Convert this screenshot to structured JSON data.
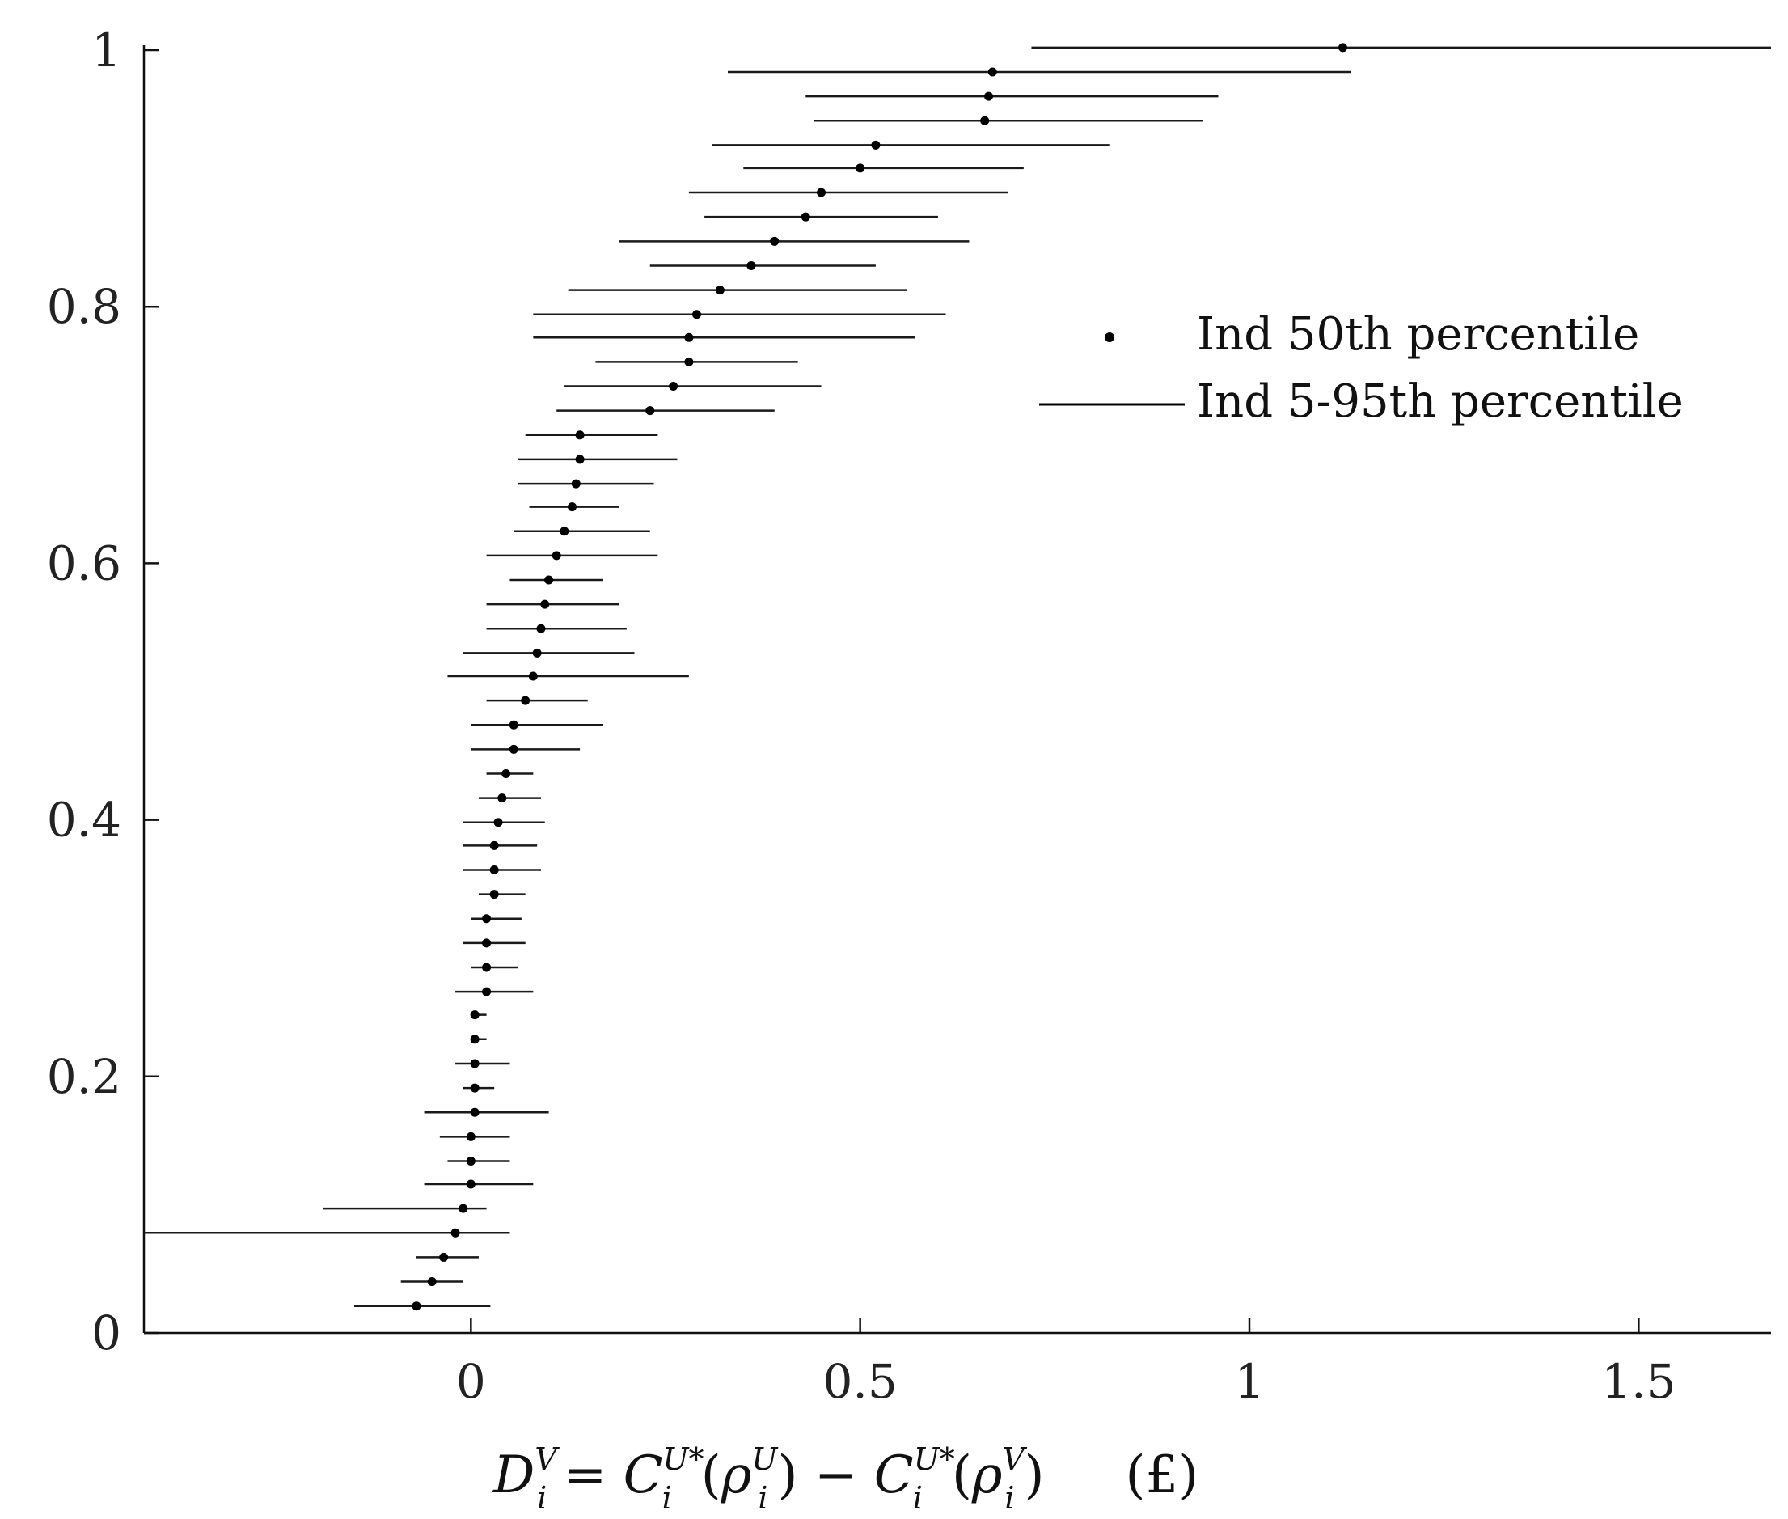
{
  "chart_data": {
    "type": "scatter",
    "xlabel": "D_i^V = C_i^{U*}(ρ_i^U) − C_i^{U*}(ρ_i^V)     (£)",
    "xlabel_parts": {
      "lhs_base": "D",
      "lhs_sub": "i",
      "lhs_sup": "V",
      "eq": " = ",
      "c1_base": "C",
      "c1_sub": "i",
      "c1_sup": "U*",
      "open1": "(",
      "rho1_base": "ρ",
      "rho1_sub": "i",
      "rho1_sup": "U",
      "close1": ")",
      "minus": " − ",
      "c2_base": "C",
      "c2_sub": "i",
      "c2_sup": "U*",
      "open2": "(",
      "rho2_base": "ρ",
      "rho2_sub": "i",
      "rho2_sup": "V",
      "close2": ")",
      "unit": "(£)"
    },
    "ylabel": "",
    "xlim": [
      -0.42,
      1.67
    ],
    "ylim": [
      0,
      1
    ],
    "x_ticks": [
      0,
      0.5,
      1,
      1.5
    ],
    "x_tick_labels": [
      "0",
      "0.5",
      "1",
      "1.5"
    ],
    "y_ticks": [
      0,
      0.2,
      0.4,
      0.6,
      0.8,
      1
    ],
    "y_tick_labels": [
      "0",
      "0.2",
      "0.4",
      "0.6",
      "0.8",
      "1"
    ],
    "grid": false,
    "legend": {
      "placement": "top-right",
      "entries": [
        {
          "label": "Ind 50th percentile",
          "marker": "dot"
        },
        {
          "label": "Ind 5-95th percentile",
          "marker": "line"
        }
      ]
    },
    "series": [
      {
        "name": "Ind 50th percentile",
        "color": "#000000",
        "points": [
          {
            "y": 0.021,
            "x": -0.07,
            "lo": -0.15,
            "hi": 0.025
          },
          {
            "y": 0.04,
            "x": -0.05,
            "lo": -0.09,
            "hi": -0.01
          },
          {
            "y": 0.059,
            "x": -0.035,
            "lo": -0.07,
            "hi": 0.01
          },
          {
            "y": 0.078,
            "x": -0.02,
            "lo": -0.42,
            "hi": 0.05
          },
          {
            "y": 0.097,
            "x": -0.01,
            "lo": -0.19,
            "hi": 0.02
          },
          {
            "y": 0.116,
            "x": 0.0,
            "lo": -0.06,
            "hi": 0.08
          },
          {
            "y": 0.134,
            "x": 0.0,
            "lo": -0.03,
            "hi": 0.05
          },
          {
            "y": 0.153,
            "x": 0.0,
            "lo": -0.04,
            "hi": 0.05
          },
          {
            "y": 0.172,
            "x": 0.005,
            "lo": -0.06,
            "hi": 0.1
          },
          {
            "y": 0.191,
            "x": 0.005,
            "lo": -0.01,
            "hi": 0.03
          },
          {
            "y": 0.21,
            "x": 0.005,
            "lo": -0.02,
            "hi": 0.05
          },
          {
            "y": 0.229,
            "x": 0.005,
            "lo": 0.0,
            "hi": 0.02
          },
          {
            "y": 0.248,
            "x": 0.005,
            "lo": 0.0,
            "hi": 0.02
          },
          {
            "y": 0.266,
            "x": 0.02,
            "lo": -0.02,
            "hi": 0.08
          },
          {
            "y": 0.285,
            "x": 0.02,
            "lo": 0.0,
            "hi": 0.06
          },
          {
            "y": 0.304,
            "x": 0.02,
            "lo": -0.01,
            "hi": 0.07
          },
          {
            "y": 0.323,
            "x": 0.02,
            "lo": 0.0,
            "hi": 0.065
          },
          {
            "y": 0.342,
            "x": 0.03,
            "lo": 0.01,
            "hi": 0.07
          },
          {
            "y": 0.361,
            "x": 0.03,
            "lo": -0.01,
            "hi": 0.09
          },
          {
            "y": 0.38,
            "x": 0.03,
            "lo": -0.01,
            "hi": 0.085
          },
          {
            "y": 0.398,
            "x": 0.035,
            "lo": -0.01,
            "hi": 0.095
          },
          {
            "y": 0.417,
            "x": 0.04,
            "lo": 0.01,
            "hi": 0.09
          },
          {
            "y": 0.436,
            "x": 0.045,
            "lo": 0.02,
            "hi": 0.08
          },
          {
            "y": 0.455,
            "x": 0.055,
            "lo": 0.0,
            "hi": 0.14
          },
          {
            "y": 0.474,
            "x": 0.055,
            "lo": 0.0,
            "hi": 0.17
          },
          {
            "y": 0.493,
            "x": 0.07,
            "lo": 0.02,
            "hi": 0.15
          },
          {
            "y": 0.512,
            "x": 0.08,
            "lo": -0.03,
            "hi": 0.28
          },
          {
            "y": 0.53,
            "x": 0.085,
            "lo": -0.01,
            "hi": 0.21
          },
          {
            "y": 0.549,
            "x": 0.09,
            "lo": 0.02,
            "hi": 0.2
          },
          {
            "y": 0.568,
            "x": 0.095,
            "lo": 0.02,
            "hi": 0.19
          },
          {
            "y": 0.587,
            "x": 0.1,
            "lo": 0.05,
            "hi": 0.17
          },
          {
            "y": 0.606,
            "x": 0.11,
            "lo": 0.02,
            "hi": 0.24
          },
          {
            "y": 0.625,
            "x": 0.12,
            "lo": 0.055,
            "hi": 0.23
          },
          {
            "y": 0.644,
            "x": 0.13,
            "lo": 0.075,
            "hi": 0.19
          },
          {
            "y": 0.662,
            "x": 0.135,
            "lo": 0.06,
            "hi": 0.235
          },
          {
            "y": 0.681,
            "x": 0.14,
            "lo": 0.06,
            "hi": 0.265
          },
          {
            "y": 0.7,
            "x": 0.14,
            "lo": 0.07,
            "hi": 0.24
          },
          {
            "y": 0.719,
            "x": 0.23,
            "lo": 0.11,
            "hi": 0.39
          },
          {
            "y": 0.738,
            "x": 0.26,
            "lo": 0.12,
            "hi": 0.45
          },
          {
            "y": 0.757,
            "x": 0.28,
            "lo": 0.16,
            "hi": 0.42
          },
          {
            "y": 0.776,
            "x": 0.28,
            "lo": 0.08,
            "hi": 0.57
          },
          {
            "y": 0.794,
            "x": 0.29,
            "lo": 0.08,
            "hi": 0.61
          },
          {
            "y": 0.813,
            "x": 0.32,
            "lo": 0.125,
            "hi": 0.56
          },
          {
            "y": 0.832,
            "x": 0.36,
            "lo": 0.23,
            "hi": 0.52
          },
          {
            "y": 0.851,
            "x": 0.39,
            "lo": 0.19,
            "hi": 0.64
          },
          {
            "y": 0.87,
            "x": 0.43,
            "lo": 0.3,
            "hi": 0.6
          },
          {
            "y": 0.889,
            "x": 0.45,
            "lo": 0.28,
            "hi": 0.69
          },
          {
            "y": 0.908,
            "x": 0.5,
            "lo": 0.35,
            "hi": 0.71
          },
          {
            "y": 0.926,
            "x": 0.52,
            "lo": 0.31,
            "hi": 0.82
          },
          {
            "y": 0.945,
            "x": 0.66,
            "lo": 0.44,
            "hi": 0.94
          },
          {
            "y": 0.964,
            "x": 0.665,
            "lo": 0.43,
            "hi": 0.96
          },
          {
            "y": 0.983,
            "x": 0.67,
            "lo": 0.33,
            "hi": 1.13
          },
          {
            "y": 1.002,
            "x": 1.12,
            "lo": 0.72,
            "hi": 1.67
          }
        ]
      }
    ]
  }
}
